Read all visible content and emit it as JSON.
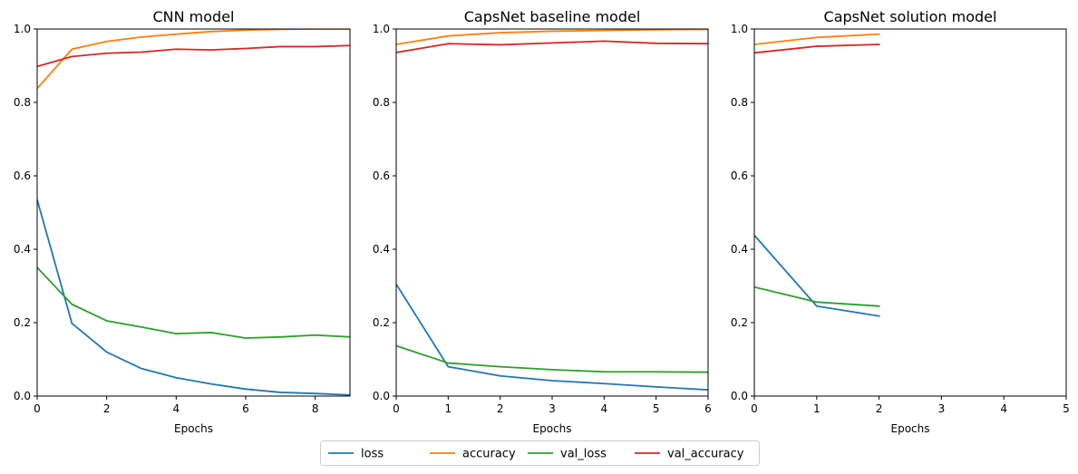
{
  "chart_data": [
    {
      "type": "line",
      "title": "CNN model",
      "xlabel": "Epochs",
      "ylabel": "",
      "xlim": [
        0,
        9
      ],
      "ylim": [
        0,
        1
      ],
      "xticks": [
        0,
        2,
        4,
        6,
        8
      ],
      "yticks": [
        0.0,
        0.2,
        0.4,
        0.6,
        0.8,
        1.0
      ],
      "grid": false,
      "x": [
        0,
        1,
        2,
        3,
        4,
        5,
        6,
        7,
        8,
        9
      ],
      "series": [
        {
          "name": "loss",
          "color": "#1f77b4",
          "values": [
            0.535,
            0.198,
            0.12,
            0.075,
            0.05,
            0.033,
            0.019,
            0.01,
            0.007,
            0.003
          ]
        },
        {
          "name": "accuracy",
          "color": "#ff7f0e",
          "values": [
            0.838,
            0.945,
            0.966,
            0.978,
            0.986,
            0.993,
            0.997,
            0.999,
            1.0,
            1.0
          ]
        },
        {
          "name": "val_loss",
          "color": "#2ca02c",
          "values": [
            0.35,
            0.25,
            0.205,
            0.188,
            0.17,
            0.173,
            0.158,
            0.161,
            0.166,
            0.161
          ]
        },
        {
          "name": "val_accuracy",
          "color": "#d62728",
          "values": [
            0.898,
            0.925,
            0.934,
            0.937,
            0.945,
            0.943,
            0.947,
            0.952,
            0.952,
            0.955
          ]
        }
      ]
    },
    {
      "type": "line",
      "title": "CapsNet baseline model",
      "xlabel": "Epochs",
      "ylabel": "",
      "xlim": [
        0,
        6
      ],
      "ylim": [
        0,
        1
      ],
      "xticks": [
        0,
        1,
        2,
        3,
        4,
        5,
        6
      ],
      "yticks": [
        0.0,
        0.2,
        0.4,
        0.6,
        0.8,
        1.0
      ],
      "grid": false,
      "x": [
        0,
        1,
        2,
        3,
        4,
        5,
        6
      ],
      "series": [
        {
          "name": "loss",
          "color": "#1f77b4",
          "values": [
            0.305,
            0.08,
            0.055,
            0.042,
            0.034,
            0.025,
            0.017
          ]
        },
        {
          "name": "accuracy",
          "color": "#ff7f0e",
          "values": [
            0.958,
            0.981,
            0.99,
            0.994,
            0.996,
            0.998,
            0.999
          ]
        },
        {
          "name": "val_loss",
          "color": "#2ca02c",
          "values": [
            0.137,
            0.09,
            0.08,
            0.072,
            0.066,
            0.066,
            0.065
          ]
        },
        {
          "name": "val_accuracy",
          "color": "#d62728",
          "values": [
            0.936,
            0.96,
            0.957,
            0.962,
            0.967,
            0.961,
            0.96
          ]
        }
      ]
    },
    {
      "type": "line",
      "title": "CapsNet solution model",
      "xlabel": "Epochs",
      "ylabel": "",
      "xlim": [
        0,
        5
      ],
      "ylim": [
        0,
        1
      ],
      "xticks": [
        0,
        1,
        2,
        3,
        4,
        5
      ],
      "yticks": [
        0.0,
        0.2,
        0.4,
        0.6,
        0.8,
        1.0
      ],
      "grid": false,
      "x": [
        0,
        1,
        2
      ],
      "series": [
        {
          "name": "loss",
          "color": "#1f77b4",
          "values": [
            0.438,
            0.245,
            0.218
          ]
        },
        {
          "name": "accuracy",
          "color": "#ff7f0e",
          "values": [
            0.958,
            0.977,
            0.986
          ]
        },
        {
          "name": "val_loss",
          "color": "#2ca02c",
          "values": [
            0.297,
            0.256,
            0.245
          ]
        },
        {
          "name": "val_accuracy",
          "color": "#d62728",
          "values": [
            0.935,
            0.953,
            0.958
          ]
        }
      ]
    }
  ],
  "legend": {
    "placement": "bottom-center",
    "entries": [
      {
        "label": "loss",
        "color": "#1f77b4"
      },
      {
        "label": "accuracy",
        "color": "#ff7f0e"
      },
      {
        "label": "val_loss",
        "color": "#2ca02c"
      },
      {
        "label": "val_accuracy",
        "color": "#d62728"
      }
    ]
  }
}
